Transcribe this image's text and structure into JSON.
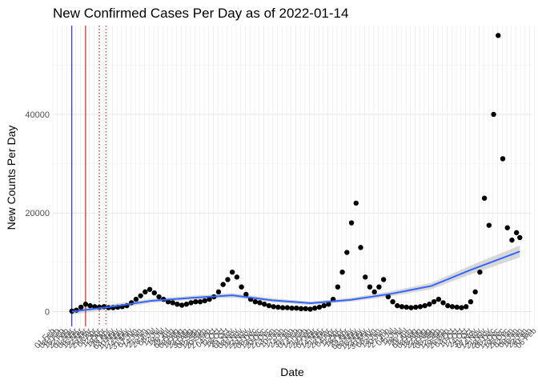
{
  "chart_data": {
    "type": "scatter",
    "title": "New Confirmed Cases Per Day as of 2022-01-14",
    "xlabel": "Date",
    "ylabel": "New Counts Per Day",
    "ylim": [
      -3000,
      58000
    ],
    "yticks": [
      0,
      20000,
      40000
    ],
    "grid": true,
    "legend": "none",
    "colors": {
      "points": "#000000",
      "smooth": "#3366ff",
      "band": "#c8c8c8",
      "vline_blue": "#0000ff",
      "vline_red": "#cc0000"
    },
    "x_start": "2020-02-01",
    "x_end": "2022-02-01",
    "xticks": [
      "01 Feb",
      "08 Feb",
      "15 Feb",
      "22 Feb",
      "01 Mar",
      "08 Mar",
      "15 Mar",
      "22 Mar",
      "29 Mar",
      "05 Apr",
      "12 Apr",
      "19 Apr",
      "26 Apr",
      "03 May",
      "10 May",
      "17 May",
      "24 May",
      "31 May",
      "07 Jun",
      "14 Jun",
      "21 Jun",
      "28 Jun",
      "05 Jul",
      "12 Jul",
      "19 Jul",
      "26 Jul",
      "02 Aug",
      "09 Aug",
      "16 Aug",
      "23 Aug",
      "30 Aug",
      "06 Sep",
      "13 Sep",
      "20 Sep",
      "27 Sep",
      "04 Oct",
      "11 Oct",
      "18 Oct",
      "25 Oct",
      "01 Nov",
      "08 Nov",
      "15 Nov",
      "22 Nov",
      "29 Nov",
      "06 Dec",
      "13 Dec",
      "20 Dec",
      "27 Dec",
      "03 Jan",
      "10 Jan",
      "17 Jan",
      "24 Jan",
      "31 Jan",
      "07 Feb",
      "14 Feb",
      "21 Feb",
      "28 Feb",
      "07 Mar",
      "14 Mar",
      "21 Mar",
      "28 Mar",
      "04 Apr",
      "11 Apr",
      "18 Apr",
      "25 Apr",
      "02 May",
      "09 May",
      "16 May",
      "23 May",
      "30 May",
      "06 Jun",
      "13 Jun",
      "20 Jun",
      "27 Jun",
      "04 Jul",
      "11 Jul",
      "18 Jul",
      "25 Jul",
      "01 Aug",
      "08 Aug",
      "15 Aug",
      "22 Aug",
      "29 Aug",
      "05 Sep",
      "12 Sep",
      "19 Sep",
      "26 Sep",
      "03 Oct",
      "10 Oct",
      "17 Oct",
      "24 Oct",
      "31 Oct",
      "07 Nov",
      "14 Nov",
      "21 Nov",
      "28 Nov",
      "05 Dec",
      "12 Dec",
      "19 Dec",
      "26 Dec",
      "02 Jan",
      "09 Jan",
      "16 Jan",
      "23 Jan",
      "30 Jan",
      "06 Feb"
    ],
    "vlines": [
      {
        "x": "2020-03-01",
        "color": "blue",
        "style": "solid"
      },
      {
        "x": "2020-03-22",
        "color": "red",
        "style": "solid"
      },
      {
        "x": "2020-04-12",
        "color": "red",
        "style": "dotted"
      },
      {
        "x": "2020-04-22",
        "color": "red",
        "style": "dotted"
      }
    ],
    "series": [
      {
        "type": "points",
        "x": [
          "2020-03-01",
          "2020-03-08",
          "2020-03-15",
          "2020-03-22",
          "2020-03-29",
          "2020-04-05",
          "2020-04-12",
          "2020-04-19",
          "2020-04-26",
          "2020-05-03",
          "2020-05-10",
          "2020-05-17",
          "2020-05-24",
          "2020-05-31",
          "2020-06-07",
          "2020-06-14",
          "2020-06-21",
          "2020-06-28",
          "2020-07-05",
          "2020-07-12",
          "2020-07-19",
          "2020-07-26",
          "2020-08-02",
          "2020-08-09",
          "2020-08-16",
          "2020-08-23",
          "2020-08-30",
          "2020-09-06",
          "2020-09-13",
          "2020-09-20",
          "2020-09-27",
          "2020-10-04",
          "2020-10-11",
          "2020-10-18",
          "2020-10-25",
          "2020-11-01",
          "2020-11-08",
          "2020-11-15",
          "2020-11-22",
          "2020-11-29",
          "2020-12-06",
          "2020-12-13",
          "2020-12-20",
          "2020-12-27",
          "2021-01-03",
          "2021-01-10",
          "2021-01-17",
          "2021-01-24",
          "2021-01-31",
          "2021-02-07",
          "2021-02-14",
          "2021-02-21",
          "2021-02-28",
          "2021-03-07",
          "2021-03-14",
          "2021-03-21",
          "2021-03-28",
          "2021-04-04",
          "2021-04-11",
          "2021-04-18",
          "2021-04-25",
          "2021-05-02",
          "2021-05-09",
          "2021-05-16",
          "2021-05-23",
          "2021-05-30",
          "2021-06-06",
          "2021-06-13",
          "2021-06-20",
          "2021-06-27",
          "2021-07-04",
          "2021-07-11",
          "2021-07-18",
          "2021-07-25",
          "2021-08-01",
          "2021-08-08",
          "2021-08-15",
          "2021-08-22",
          "2021-08-29",
          "2021-09-05",
          "2021-09-12",
          "2021-09-19",
          "2021-09-26",
          "2021-10-03",
          "2021-10-10",
          "2021-10-17",
          "2021-10-24",
          "2021-10-31",
          "2021-11-07",
          "2021-11-14",
          "2021-11-21",
          "2021-11-28",
          "2021-12-05",
          "2021-12-12",
          "2021-12-19",
          "2021-12-26",
          "2022-01-02",
          "2022-01-09",
          "2022-01-14"
        ],
        "y": [
          100,
          300,
          900,
          1500,
          1200,
          1000,
          900,
          1000,
          800,
          800,
          900,
          1000,
          1200,
          1800,
          2500,
          3200,
          4000,
          4500,
          3800,
          3000,
          2500,
          2000,
          1800,
          1500,
          1300,
          1500,
          1800,
          2000,
          2000,
          2200,
          2500,
          3000,
          4000,
          5500,
          6500,
          8000,
          7000,
          5000,
          3500,
          2500,
          2000,
          1800,
          1500,
          1200,
          1000,
          900,
          800,
          800,
          700,
          700,
          600,
          600,
          500,
          700,
          900,
          1200,
          1500,
          2500,
          5000,
          8000,
          12000,
          18000,
          22000,
          13000,
          7000,
          5000,
          4000,
          5000,
          6500,
          3000,
          2000,
          1200,
          1000,
          900,
          800,
          900,
          1000,
          1200,
          1500,
          2000,
          2500,
          1800,
          1200,
          1000,
          900,
          800,
          1000,
          2000,
          4000,
          8000,
          23000,
          17500,
          40000,
          56000,
          31000,
          17000,
          14500,
          16000,
          15000
        ]
      },
      {
        "type": "smooth",
        "x": [
          "2020-03-01",
          "2020-05-01",
          "2020-07-01",
          "2020-09-01",
          "2020-11-01",
          "2021-01-01",
          "2021-03-01",
          "2021-05-01",
          "2021-07-01",
          "2021-09-01",
          "2021-11-01",
          "2022-01-14"
        ],
        "y": [
          0,
          1000,
          2200,
          2800,
          3300,
          2300,
          1700,
          2400,
          3600,
          5200,
          8500,
          12200
        ],
        "band": [
          600,
          500,
          400,
          400,
          450,
          400,
          350,
          400,
          500,
          650,
          900,
          1200
        ]
      }
    ]
  }
}
